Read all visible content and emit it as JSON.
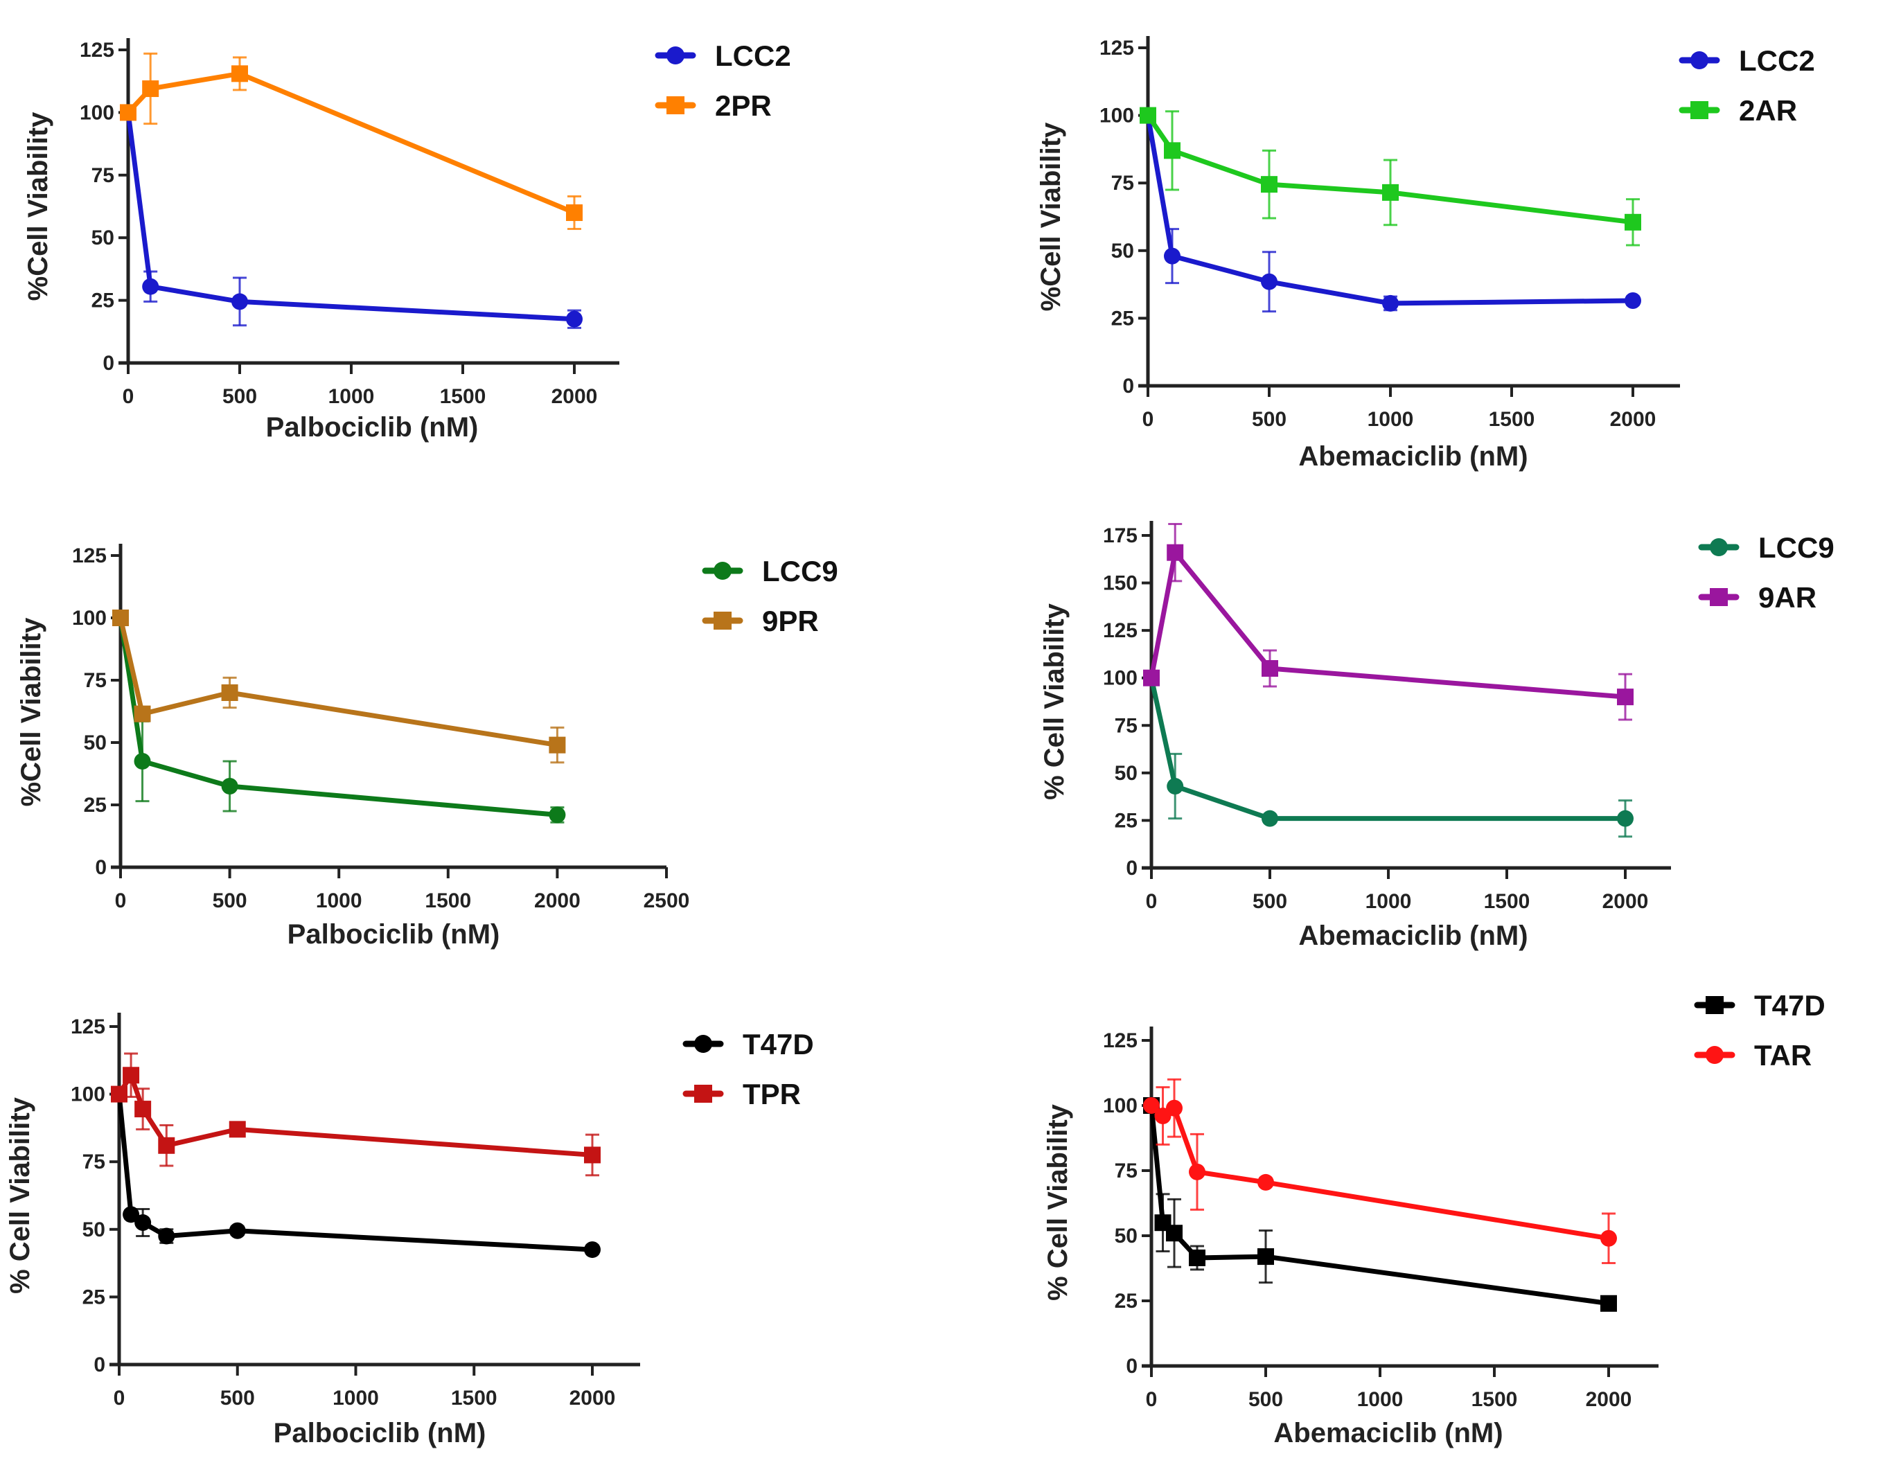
{
  "chart_data": [
    {
      "type": "line",
      "panel": "top-left",
      "title": "",
      "xlabel": "Palbociclib (nM)",
      "ylabel": "%Cell Viability",
      "xlim": [
        0,
        2000
      ],
      "ylim": [
        0,
        125
      ],
      "xticks": [
        0,
        500,
        1000,
        1500,
        2000
      ],
      "yticks": [
        0,
        25,
        50,
        75,
        100,
        125
      ],
      "grid": false,
      "legend_position": "top-right",
      "series": [
        {
          "name": "LCC2",
          "color": "#1a1acc",
          "marker": "circle",
          "x": [
            0,
            100,
            500,
            2000
          ],
          "y": [
            100,
            30.5,
            24.5,
            17.5
          ],
          "err": [
            0,
            6,
            9.5,
            3.5
          ]
        },
        {
          "name": "2PR",
          "color": "#ff8000",
          "marker": "square",
          "x": [
            0,
            100,
            500,
            2000
          ],
          "y": [
            100,
            109.5,
            115.5,
            60
          ],
          "err": [
            0,
            14,
            6.5,
            6.5
          ]
        }
      ]
    },
    {
      "type": "line",
      "panel": "top-right",
      "title": "",
      "xlabel": "Abemaciclib (nM)",
      "ylabel": "%Cell Viability",
      "xlim": [
        0,
        2000
      ],
      "ylim": [
        0,
        125
      ],
      "xticks": [
        0,
        500,
        1000,
        1500,
        2000
      ],
      "yticks": [
        0,
        25,
        50,
        75,
        100,
        125
      ],
      "grid": false,
      "legend_position": "top-right",
      "series": [
        {
          "name": "LCC2",
          "color": "#1a1acc",
          "marker": "circle",
          "x": [
            0,
            100,
            500,
            1000,
            2000
          ],
          "y": [
            100,
            48,
            38.5,
            30.5,
            31.5
          ],
          "err": [
            0,
            10,
            11,
            2.5,
            1.5
          ]
        },
        {
          "name": "2AR",
          "color": "#1ec81e",
          "marker": "square",
          "x": [
            0,
            100,
            500,
            1000,
            2000
          ],
          "y": [
            100,
            87,
            74.5,
            71.5,
            60.5
          ],
          "err": [
            0,
            14.5,
            12.5,
            12,
            8.5
          ]
        }
      ]
    },
    {
      "type": "line",
      "panel": "middle-left",
      "title": "",
      "xlabel": "Palbociclib (nM)",
      "ylabel": "%Cell Viability",
      "xlim": [
        0,
        2500
      ],
      "ylim": [
        0,
        125
      ],
      "xticks": [
        0,
        500,
        1000,
        1500,
        2000,
        2500
      ],
      "yticks": [
        0,
        25,
        50,
        75,
        100,
        125
      ],
      "grid": false,
      "legend_position": "top-right",
      "series": [
        {
          "name": "LCC9",
          "color": "#0d7a1a",
          "marker": "circle",
          "x": [
            0,
            100,
            500,
            2000
          ],
          "y": [
            100,
            42.5,
            32.5,
            21
          ],
          "err": [
            0,
            16,
            10,
            3
          ]
        },
        {
          "name": "9PR",
          "color": "#b8741a",
          "marker": "square",
          "x": [
            0,
            100,
            500,
            2000
          ],
          "y": [
            100,
            61.5,
            70,
            49
          ],
          "err": [
            0,
            2.5,
            6,
            7
          ]
        }
      ]
    },
    {
      "type": "line",
      "panel": "middle-right",
      "title": "",
      "xlabel": "Abemaciclib (nM)",
      "ylabel": "% Cell Viability",
      "xlim": [
        0,
        2000
      ],
      "ylim": [
        0,
        175
      ],
      "xticks": [
        0,
        500,
        1000,
        1500,
        2000
      ],
      "yticks": [
        0,
        25,
        50,
        75,
        100,
        125,
        150,
        175
      ],
      "grid": false,
      "legend_position": "top-right",
      "series": [
        {
          "name": "LCC9",
          "color": "#0e7a52",
          "marker": "circle",
          "x": [
            0,
            100,
            500,
            2000
          ],
          "y": [
            100,
            43,
            26,
            26
          ],
          "err": [
            0,
            17,
            2,
            9.5
          ]
        },
        {
          "name": "9AR",
          "color": "#9a169e",
          "marker": "square",
          "x": [
            0,
            100,
            500,
            2000
          ],
          "y": [
            100,
            166,
            105,
            90
          ],
          "err": [
            0,
            15,
            9.5,
            12
          ]
        }
      ]
    },
    {
      "type": "line",
      "panel": "bottom-left",
      "title": "",
      "xlabel": "Palbociclib (nM)",
      "ylabel": "% Cell Viability",
      "xlim": [
        0,
        2000
      ],
      "ylim": [
        0,
        125
      ],
      "xticks": [
        0,
        500,
        1000,
        1500,
        2000
      ],
      "yticks": [
        0,
        25,
        50,
        75,
        100,
        125
      ],
      "grid": false,
      "legend_position": "top-right",
      "series": [
        {
          "name": "T47D",
          "color": "#000000",
          "marker": "circle",
          "x": [
            0,
            50,
            100,
            200,
            500,
            2000
          ],
          "y": [
            100,
            55.5,
            52.5,
            47.5,
            49.5,
            42.5
          ],
          "err": [
            0,
            1.5,
            5,
            2.5,
            1.5,
            1.5
          ]
        },
        {
          "name": "TPR",
          "color": "#c41414",
          "marker": "square",
          "x": [
            0,
            50,
            100,
            200,
            500,
            2000
          ],
          "y": [
            100,
            107,
            94.5,
            81,
            87,
            77.5
          ],
          "err": [
            0,
            8,
            7.5,
            7.5,
            1.5,
            7.5
          ]
        }
      ]
    },
    {
      "type": "line",
      "panel": "bottom-right",
      "title": "",
      "xlabel": "Abemaciclib (nM)",
      "ylabel": "% Cell Viability",
      "xlim": [
        0,
        2000
      ],
      "ylim": [
        0,
        125
      ],
      "xticks": [
        0,
        500,
        1000,
        1500,
        2000
      ],
      "yticks": [
        0,
        25,
        50,
        75,
        100,
        125
      ],
      "grid": false,
      "legend_position": "top-right",
      "series": [
        {
          "name": "T47D",
          "color": "#000000",
          "marker": "square",
          "x": [
            0,
            50,
            100,
            200,
            500,
            2000
          ],
          "y": [
            100,
            55,
            51,
            41.5,
            42,
            24
          ],
          "err": [
            0,
            11,
            13,
            4.5,
            10,
            1.5
          ]
        },
        {
          "name": "TAR",
          "color": "#ff1414",
          "marker": "circle",
          "x": [
            0,
            50,
            100,
            200,
            500,
            2000
          ],
          "y": [
            100,
            96,
            99,
            74.5,
            70.5,
            49
          ],
          "err": [
            0,
            11,
            11,
            14.5,
            1.5,
            9.5
          ]
        }
      ]
    }
  ]
}
